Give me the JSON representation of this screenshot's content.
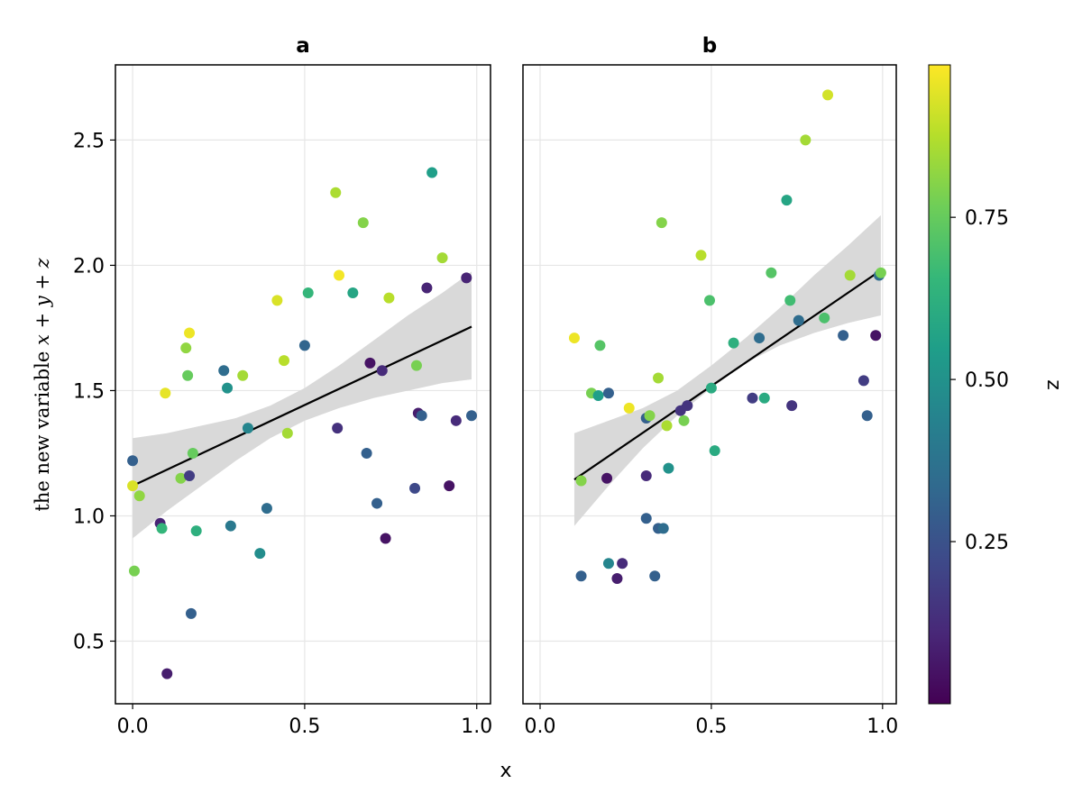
{
  "chart_data": [
    {
      "type": "scatter",
      "title": "a",
      "xlabel": "x",
      "ylabel_prefix": "the new variable ",
      "ylabel_math": "x + y + z",
      "xlim": [
        -0.05,
        1.04
      ],
      "ylim": [
        0.25,
        2.8
      ],
      "x_ticks": [
        0.0,
        0.5,
        1.0
      ],
      "x_tick_labels": [
        "0.0",
        "0.5",
        "1.0"
      ],
      "y_ticks": [
        0.5,
        1.0,
        1.5,
        2.0,
        2.5
      ],
      "y_tick_labels": [
        "0.5",
        "1.0",
        "1.5",
        "2.0",
        "2.5"
      ],
      "grid": true,
      "fit_line": {
        "x": [
          0.0,
          0.985
        ],
        "y": [
          1.12,
          1.755
        ]
      },
      "confidence_band": {
        "x": [
          0.0,
          0.1,
          0.2,
          0.3,
          0.4,
          0.5,
          0.6,
          0.7,
          0.8,
          0.9,
          0.985
        ],
        "lower": [
          0.91,
          1.02,
          1.12,
          1.22,
          1.31,
          1.38,
          1.43,
          1.47,
          1.5,
          1.53,
          1.545
        ],
        "upper": [
          1.31,
          1.33,
          1.36,
          1.39,
          1.44,
          1.51,
          1.6,
          1.7,
          1.8,
          1.89,
          1.975
        ]
      },
      "points": [
        {
          "x": 0.0,
          "y": 1.22,
          "z": 0.3
        },
        {
          "x": 0.0,
          "y": 1.12,
          "z": 0.93
        },
        {
          "x": 0.005,
          "y": 0.78,
          "z": 0.78
        },
        {
          "x": 0.02,
          "y": 1.08,
          "z": 0.82
        },
        {
          "x": 0.08,
          "y": 0.97,
          "z": 0.1
        },
        {
          "x": 0.085,
          "y": 0.95,
          "z": 0.65
        },
        {
          "x": 0.095,
          "y": 1.49,
          "z": 0.95
        },
        {
          "x": 0.1,
          "y": 0.37,
          "z": 0.08
        },
        {
          "x": 0.14,
          "y": 1.15,
          "z": 0.8
        },
        {
          "x": 0.155,
          "y": 1.67,
          "z": 0.82
        },
        {
          "x": 0.16,
          "y": 1.56,
          "z": 0.75
        },
        {
          "x": 0.165,
          "y": 1.16,
          "z": 0.18
        },
        {
          "x": 0.165,
          "y": 1.73,
          "z": 0.96
        },
        {
          "x": 0.17,
          "y": 0.61,
          "z": 0.3
        },
        {
          "x": 0.175,
          "y": 1.25,
          "z": 0.75
        },
        {
          "x": 0.185,
          "y": 0.94,
          "z": 0.62
        },
        {
          "x": 0.265,
          "y": 1.58,
          "z": 0.35
        },
        {
          "x": 0.275,
          "y": 1.51,
          "z": 0.5
        },
        {
          "x": 0.285,
          "y": 0.96,
          "z": 0.4
        },
        {
          "x": 0.32,
          "y": 1.56,
          "z": 0.85
        },
        {
          "x": 0.335,
          "y": 1.35,
          "z": 0.45
        },
        {
          "x": 0.37,
          "y": 0.85,
          "z": 0.48
        },
        {
          "x": 0.39,
          "y": 1.03,
          "z": 0.35
        },
        {
          "x": 0.42,
          "y": 1.86,
          "z": 0.93
        },
        {
          "x": 0.44,
          "y": 1.62,
          "z": 0.88
        },
        {
          "x": 0.45,
          "y": 1.33,
          "z": 0.85
        },
        {
          "x": 0.5,
          "y": 1.68,
          "z": 0.32
        },
        {
          "x": 0.51,
          "y": 1.89,
          "z": 0.65
        },
        {
          "x": 0.59,
          "y": 2.29,
          "z": 0.86
        },
        {
          "x": 0.595,
          "y": 1.35,
          "z": 0.14
        },
        {
          "x": 0.6,
          "y": 1.96,
          "z": 0.97
        },
        {
          "x": 0.64,
          "y": 1.89,
          "z": 0.58
        },
        {
          "x": 0.67,
          "y": 2.17,
          "z": 0.8
        },
        {
          "x": 0.68,
          "y": 1.25,
          "z": 0.3
        },
        {
          "x": 0.69,
          "y": 1.61,
          "z": 0.05
        },
        {
          "x": 0.71,
          "y": 1.05,
          "z": 0.3
        },
        {
          "x": 0.725,
          "y": 1.58,
          "z": 0.12
        },
        {
          "x": 0.735,
          "y": 0.91,
          "z": 0.05
        },
        {
          "x": 0.745,
          "y": 1.87,
          "z": 0.88
        },
        {
          "x": 0.82,
          "y": 1.11,
          "z": 0.22
        },
        {
          "x": 0.825,
          "y": 1.6,
          "z": 0.78
        },
        {
          "x": 0.83,
          "y": 1.41,
          "z": 0.08
        },
        {
          "x": 0.84,
          "y": 1.4,
          "z": 0.3
        },
        {
          "x": 0.855,
          "y": 1.91,
          "z": 0.1
        },
        {
          "x": 0.87,
          "y": 2.37,
          "z": 0.55
        },
        {
          "x": 0.9,
          "y": 2.03,
          "z": 0.85
        },
        {
          "x": 0.92,
          "y": 1.12,
          "z": 0.05
        },
        {
          "x": 0.94,
          "y": 1.38,
          "z": 0.12
        },
        {
          "x": 0.97,
          "y": 1.95,
          "z": 0.1
        },
        {
          "x": 0.985,
          "y": 1.4,
          "z": 0.3
        }
      ]
    },
    {
      "type": "scatter",
      "title": "b",
      "xlim": [
        -0.05,
        1.04
      ],
      "ylim": [
        0.25,
        2.8
      ],
      "x_ticks": [
        0.0,
        0.5,
        1.0
      ],
      "x_tick_labels": [
        "0.0",
        "0.5",
        "1.0"
      ],
      "grid": true,
      "fit_line": {
        "x": [
          0.1,
          0.995
        ],
        "y": [
          1.145,
          1.98
        ]
      },
      "confidence_band": {
        "x": [
          0.1,
          0.2,
          0.3,
          0.4,
          0.5,
          0.6,
          0.7,
          0.8,
          0.9,
          0.995
        ],
        "lower": [
          0.96,
          1.12,
          1.27,
          1.4,
          1.51,
          1.61,
          1.68,
          1.73,
          1.77,
          1.8
        ],
        "upper": [
          1.33,
          1.38,
          1.43,
          1.5,
          1.6,
          1.71,
          1.83,
          1.96,
          2.08,
          2.2
        ]
      },
      "points": [
        {
          "x": 0.1,
          "y": 1.71,
          "z": 0.96
        },
        {
          "x": 0.12,
          "y": 1.14,
          "z": 0.8
        },
        {
          "x": 0.12,
          "y": 0.76,
          "z": 0.3
        },
        {
          "x": 0.15,
          "y": 1.49,
          "z": 0.78
        },
        {
          "x": 0.17,
          "y": 1.48,
          "z": 0.55
        },
        {
          "x": 0.175,
          "y": 1.68,
          "z": 0.72
        },
        {
          "x": 0.195,
          "y": 1.15,
          "z": 0.05
        },
        {
          "x": 0.2,
          "y": 1.49,
          "z": 0.3
        },
        {
          "x": 0.2,
          "y": 0.81,
          "z": 0.45
        },
        {
          "x": 0.225,
          "y": 0.75,
          "z": 0.08
        },
        {
          "x": 0.24,
          "y": 0.81,
          "z": 0.12
        },
        {
          "x": 0.26,
          "y": 1.43,
          "z": 0.96
        },
        {
          "x": 0.31,
          "y": 1.39,
          "z": 0.3
        },
        {
          "x": 0.31,
          "y": 0.99,
          "z": 0.3
        },
        {
          "x": 0.31,
          "y": 1.16,
          "z": 0.12
        },
        {
          "x": 0.32,
          "y": 1.4,
          "z": 0.8
        },
        {
          "x": 0.335,
          "y": 0.76,
          "z": 0.3
        },
        {
          "x": 0.345,
          "y": 1.55,
          "z": 0.85
        },
        {
          "x": 0.345,
          "y": 0.95,
          "z": 0.3
        },
        {
          "x": 0.355,
          "y": 2.17,
          "z": 0.8
        },
        {
          "x": 0.36,
          "y": 0.95,
          "z": 0.35
        },
        {
          "x": 0.37,
          "y": 1.36,
          "z": 0.86
        },
        {
          "x": 0.375,
          "y": 1.19,
          "z": 0.5
        },
        {
          "x": 0.41,
          "y": 1.42,
          "z": 0.15
        },
        {
          "x": 0.42,
          "y": 1.38,
          "z": 0.78
        },
        {
          "x": 0.43,
          "y": 1.44,
          "z": 0.15
        },
        {
          "x": 0.47,
          "y": 2.04,
          "z": 0.88
        },
        {
          "x": 0.495,
          "y": 1.86,
          "z": 0.7
        },
        {
          "x": 0.5,
          "y": 1.51,
          "z": 0.6
        },
        {
          "x": 0.51,
          "y": 1.26,
          "z": 0.6
        },
        {
          "x": 0.565,
          "y": 1.69,
          "z": 0.62
        },
        {
          "x": 0.62,
          "y": 1.47,
          "z": 0.18
        },
        {
          "x": 0.64,
          "y": 1.71,
          "z": 0.35
        },
        {
          "x": 0.655,
          "y": 1.47,
          "z": 0.6
        },
        {
          "x": 0.675,
          "y": 1.97,
          "z": 0.72
        },
        {
          "x": 0.72,
          "y": 2.26,
          "z": 0.58
        },
        {
          "x": 0.73,
          "y": 1.86,
          "z": 0.68
        },
        {
          "x": 0.735,
          "y": 1.44,
          "z": 0.15
        },
        {
          "x": 0.755,
          "y": 1.78,
          "z": 0.35
        },
        {
          "x": 0.775,
          "y": 2.5,
          "z": 0.85
        },
        {
          "x": 0.83,
          "y": 1.79,
          "z": 0.7
        },
        {
          "x": 0.84,
          "y": 2.68,
          "z": 0.92
        },
        {
          "x": 0.885,
          "y": 1.72,
          "z": 0.3
        },
        {
          "x": 0.905,
          "y": 1.96,
          "z": 0.85
        },
        {
          "x": 0.945,
          "y": 1.54,
          "z": 0.18
        },
        {
          "x": 0.955,
          "y": 1.4,
          "z": 0.3
        },
        {
          "x": 0.98,
          "y": 1.72,
          "z": 0.05
        },
        {
          "x": 0.99,
          "y": 1.96,
          "z": 0.35
        },
        {
          "x": 0.995,
          "y": 1.97,
          "z": 0.78
        }
      ]
    }
  ],
  "colorbar": {
    "label": "z",
    "colormap": "viridis",
    "range": [
      0.0,
      0.985
    ],
    "ticks": [
      0.25,
      0.5,
      0.75
    ],
    "tick_labels": [
      "0.25",
      "0.50",
      "0.75"
    ]
  },
  "colors": {
    "fit_line": "#000000",
    "band": "#d9d9d9",
    "grid": "#e6e6e6",
    "viridis": [
      "#440154",
      "#482878",
      "#3e4989",
      "#31688e",
      "#26828e",
      "#1f9e89",
      "#35b779",
      "#6ece58",
      "#b5de2b",
      "#fde725"
    ]
  }
}
